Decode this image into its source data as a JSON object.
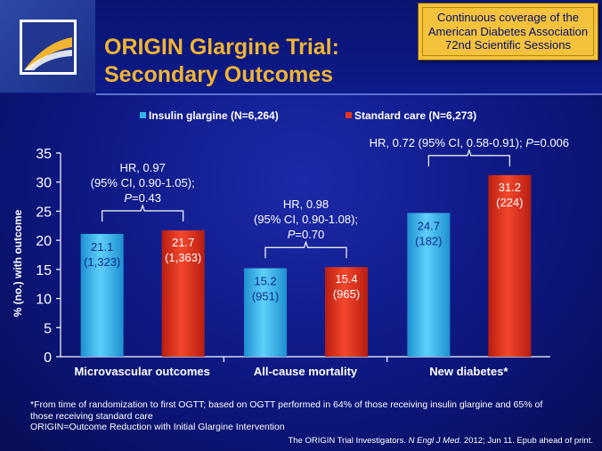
{
  "header": {
    "title_line1": "ORIGIN Glargine Trial:",
    "title_line2": "Secondary Outcomes",
    "badge_line1": "Continuous coverage of the",
    "badge_line2": "American Diabetes Association",
    "badge_line3": "72nd Scientific Sessions"
  },
  "footnote": {
    "line1": "*From time of randomization to first OGTT; based on OGTT performed in 64% of those receiving insulin glargine and 65% of",
    "line2": "those receiving standard care",
    "line3": "ORIGIN=Outcome Reduction with Initial Glargine Intervention"
  },
  "citation": {
    "authors": "The ORIGIN Trial Investigators. ",
    "journal": "N Engl J Med",
    "rest": ". 2012; Jun 11. Epub ahead of print."
  },
  "colors": {
    "glargine": "#34b4ea",
    "standard": "#e8321e",
    "title": "#f0b430",
    "badge": "#f5c23c"
  },
  "chart_data": {
    "type": "bar",
    "ylabel": "% (no.) with outcome",
    "ylim": [
      0,
      35
    ],
    "yticks": [
      0,
      5,
      10,
      15,
      20,
      25,
      30,
      35
    ],
    "categories": [
      "Microvascular outcomes",
      "All-cause mortality",
      "New diabetes*"
    ],
    "series": [
      {
        "name": "Insulin glargine (N=6,264)",
        "values": [
          21.1,
          15.2,
          24.7
        ],
        "labels": [
          [
            "21.1",
            "(1,323)"
          ],
          [
            "15.2",
            "(951)"
          ],
          [
            "24.7",
            "(182)"
          ]
        ]
      },
      {
        "name": "Standard care (N=6,273)",
        "values": [
          21.7,
          15.4,
          31.2
        ],
        "labels": [
          [
            "21.7",
            "(1,363)"
          ],
          [
            "15.4",
            "(965)"
          ],
          [
            "31.2",
            "(224)"
          ]
        ]
      }
    ],
    "annotations": [
      [
        "HR, 0.97",
        "(95% CI, 0.90-1.05);",
        "P=0.43"
      ],
      [
        "HR, 0.98",
        "(95% CI, 0.90-1.08);",
        "P=0.70"
      ],
      [
        "HR, 0.72 (95% CI, 0.58-0.91); P=0.006"
      ]
    ]
  }
}
